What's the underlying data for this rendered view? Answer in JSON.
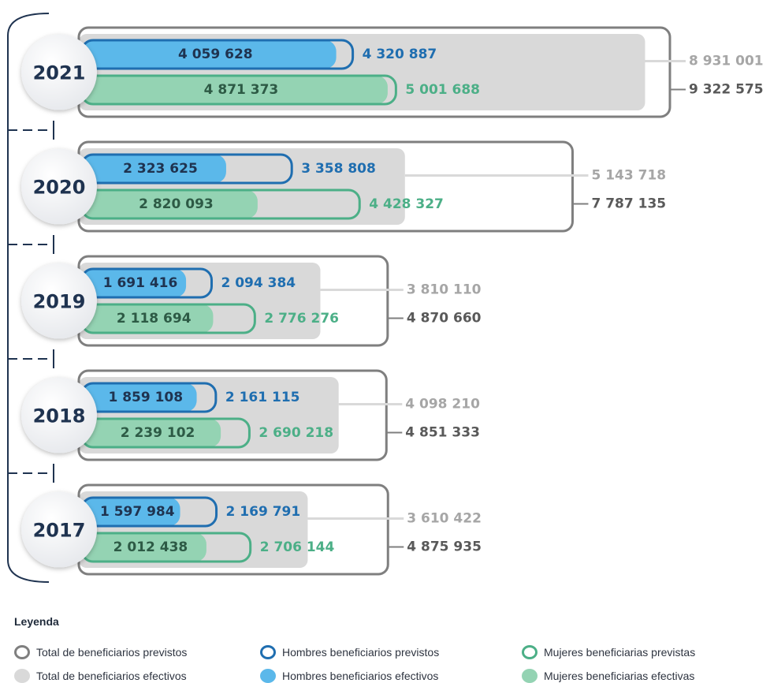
{
  "colors": {
    "gray_outline": "#7f7f7f",
    "gray_fill": "#d9d9d9",
    "gray_text": "#a6a6a6",
    "gray_dark_text": "#595959",
    "blue_outline": "#1f6eb0",
    "blue_fill": "#5bb8ea",
    "blue_text": "#1f6eb0",
    "green_outline": "#4caf87",
    "green_fill": "#94d3b3",
    "green_text": "#4caf87",
    "year_text": "#1f3350",
    "timeline": "#1f3350"
  },
  "chart_data": {
    "type": "bar",
    "categories": [
      "2021",
      "2020",
      "2019",
      "2018",
      "2017"
    ],
    "series": [
      {
        "name": "Total de beneficiarios previstos",
        "values": [
          9322575,
          7787135,
          4870660,
          4851333,
          4875935
        ],
        "labels": [
          "9 322 575",
          "7 787 135",
          "4 870 660",
          "4 851 333",
          "4 875 935"
        ]
      },
      {
        "name": "Total de beneficiarios efectivos",
        "values": [
          8931001,
          5143718,
          3810110,
          4098210,
          3610422
        ],
        "labels": [
          "8 931 001",
          "5 143 718",
          "3 810 110",
          "4 098 210",
          "3 610 422"
        ]
      },
      {
        "name": "Hombres beneficiarios previstos",
        "values": [
          4320887,
          3358808,
          2094384,
          2161115,
          2169791
        ],
        "labels": [
          "4 320 887",
          "3 358 808",
          "2 094 384",
          "2 161 115",
          "2 169 791"
        ]
      },
      {
        "name": "Hombres beneficiarios efectivos",
        "values": [
          4059628,
          2323625,
          1691416,
          1859108,
          1597984
        ],
        "labels": [
          "4 059 628",
          "2 323 625",
          "1 691 416",
          "1 859 108",
          "1 597 984"
        ]
      },
      {
        "name": "Mujeres beneficiarias previstas",
        "values": [
          5001688,
          4428327,
          2776276,
          2690218,
          2706144
        ],
        "labels": [
          "5 001 688",
          "4 428 327",
          "2 776 276",
          "2 690 218",
          "2 706 144"
        ]
      },
      {
        "name": "Mujeres beneficiarias efectivas",
        "values": [
          4871373,
          2820093,
          2118694,
          2239102,
          2012438
        ],
        "labels": [
          "4 871 373",
          "2 820 093",
          "2 118 694",
          "2 239 102",
          "2 012 438"
        ]
      }
    ]
  },
  "legend": {
    "title": "Leyenda",
    "items": [
      {
        "label": "Total de beneficiarios previstos",
        "swatch": "outline",
        "color": "#7f7f7f"
      },
      {
        "label": "Hombres beneficiarios previstos",
        "swatch": "outline",
        "color": "#1f6eb0"
      },
      {
        "label": "Mujeres beneficiarias previstas",
        "swatch": "outline",
        "color": "#4caf87"
      },
      {
        "label": "Total de beneficiarios efectivos",
        "swatch": "fill",
        "color": "#d9d9d9"
      },
      {
        "label": "Hombres beneficiarios efectivos",
        "swatch": "fill",
        "color": "#5bb8ea"
      },
      {
        "label": "Mujeres beneficiarias efectivas",
        "swatch": "fill",
        "color": "#94d3b3"
      }
    ]
  }
}
